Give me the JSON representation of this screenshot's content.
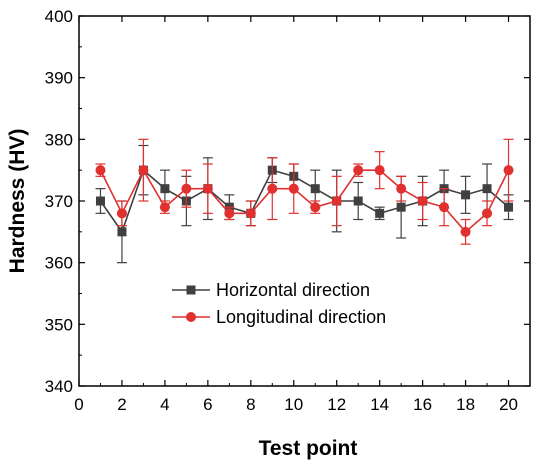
{
  "chart_data": {
    "type": "line",
    "xlabel": "Test point",
    "ylabel": "Hardness (HV)",
    "xlim": [
      0,
      21
    ],
    "ylim": [
      340,
      400
    ],
    "xticks": [
      0,
      2,
      4,
      6,
      8,
      10,
      12,
      14,
      16,
      18,
      20
    ],
    "yticks": [
      340,
      350,
      360,
      370,
      380,
      390,
      400
    ],
    "legend_position": "center-left",
    "grid": false,
    "x": [
      1,
      2,
      3,
      4,
      5,
      6,
      7,
      8,
      9,
      10,
      11,
      12,
      13,
      14,
      15,
      16,
      17,
      18,
      19,
      20
    ],
    "series": [
      {
        "name": "Horizontal direction",
        "color": "#404040",
        "marker": "square",
        "values": [
          370,
          365,
          375,
          372,
          370,
          372,
          369,
          368,
          375,
          374,
          372,
          370,
          370,
          368,
          369,
          370,
          372,
          371,
          372,
          369
        ],
        "errors": [
          2,
          5,
          4,
          3,
          4,
          5,
          2,
          2,
          2,
          2,
          3,
          5,
          3,
          1,
          5,
          4,
          3,
          3,
          4,
          2
        ]
      },
      {
        "name": "Longitudinal direction",
        "color": "#e03030",
        "marker": "circle",
        "values": [
          375,
          368,
          375,
          369,
          372,
          372,
          368,
          368,
          372,
          372,
          369,
          370,
          375,
          375,
          372,
          370,
          369,
          365,
          368,
          375
        ],
        "errors": [
          1,
          2,
          5,
          1,
          3,
          4,
          1,
          2,
          5,
          4,
          1,
          4,
          1,
          3,
          2,
          3,
          3,
          2,
          2,
          5
        ]
      }
    ]
  }
}
